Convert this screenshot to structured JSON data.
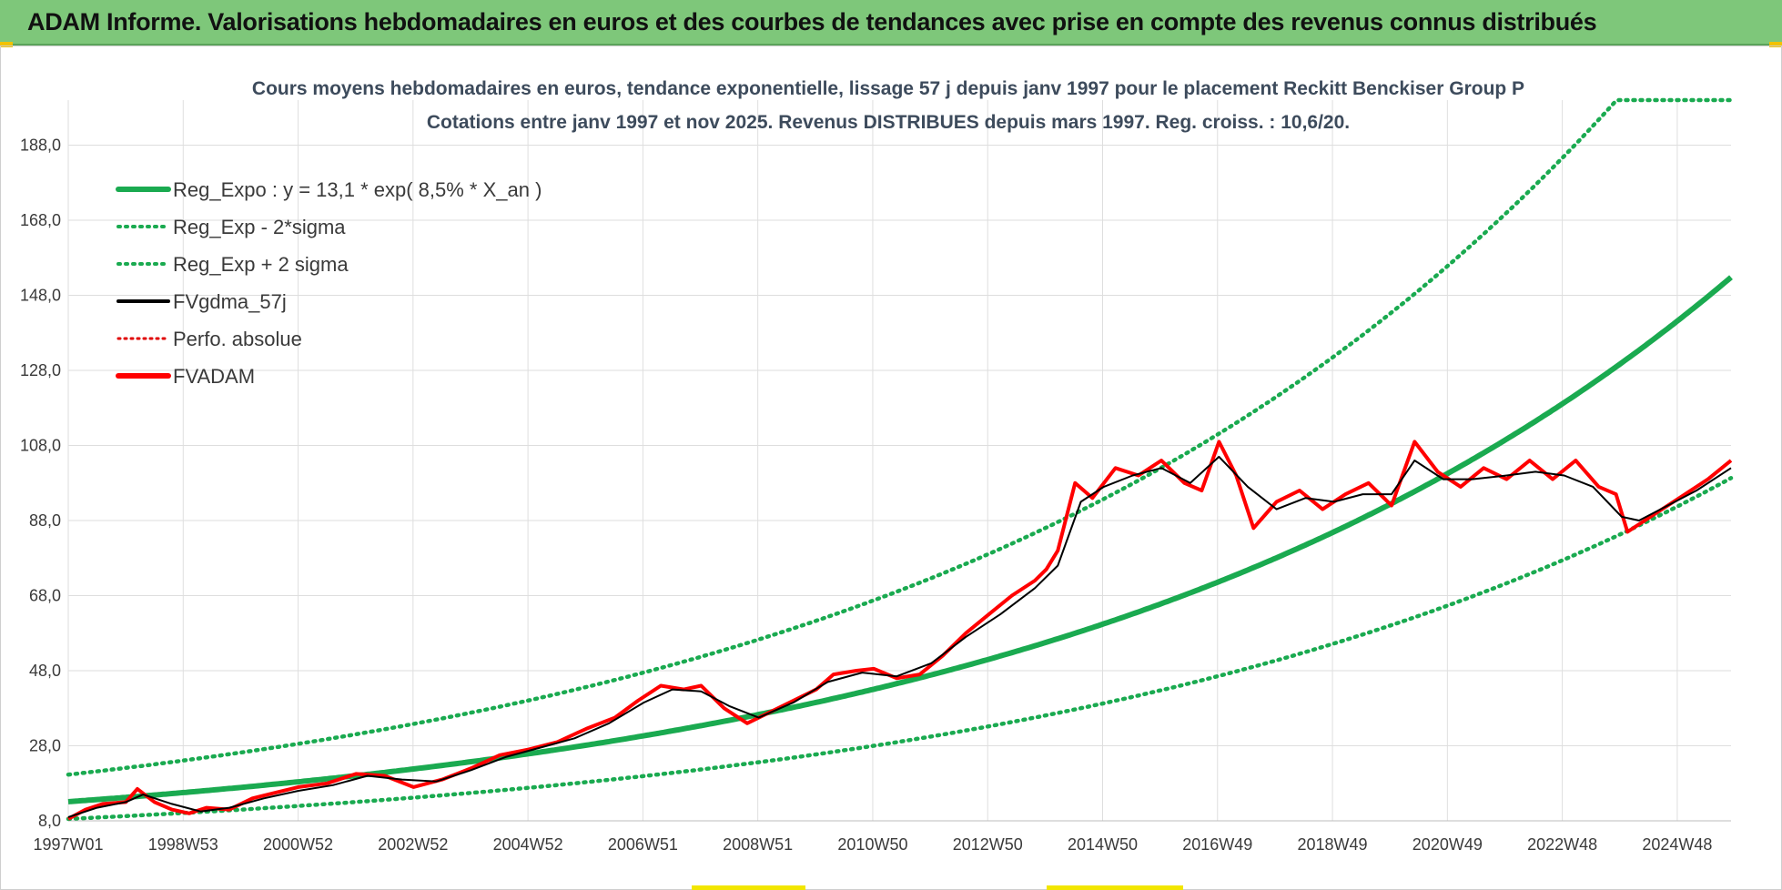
{
  "header": {
    "title": "ADAM Informe. Valorisations hebdomadaires en euros et des courbes de tendances avec prise en compte des revenus connus distribués"
  },
  "colors": {
    "banner": "#7ec77a",
    "trend": "#1aaa50",
    "sma": "#000000",
    "perf": "#e00000",
    "adam": "#ff0000",
    "grid": "#dedede"
  },
  "chart_data": {
    "type": "line",
    "title_line1": "Cours moyens hebdomadaires en euros, tendance exponentielle, lissage 57 j depuis janv 1997 pour le placement Reckitt Benckiser Group P",
    "title_line2": "Cotations entre janv 1997 et nov 2025. Revenus DISTRIBUES depuis mars 1997. Reg. croiss. : 10,6/20.",
    "xlabel": "",
    "ylabel": "",
    "ylim": [
      8,
      200
    ],
    "xlim": [
      1997.0,
      2025.9
    ],
    "y_ticks": [
      "8,0",
      "28,0",
      "48,0",
      "68,0",
      "88,0",
      "108,0",
      "128,0",
      "148,0",
      "168,0",
      "188,0"
    ],
    "x_ticks": [
      "1997W01",
      "1998W53",
      "2000W52",
      "2002W52",
      "2004W52",
      "2006W51",
      "2008W51",
      "2010W50",
      "2012W50",
      "2014W50",
      "2016W49",
      "2018W49",
      "2020W49",
      "2022W48",
      "2024W48"
    ],
    "legend": [
      "Reg_Expo : y = 13,1 * exp( 8,5% *  X_an )",
      "Reg_Exp - 2*sigma",
      "Reg_Exp + 2 sigma",
      "FVgdma_57j",
      "Perfo. absolue",
      "FVADAM"
    ],
    "legend_position": "top-left",
    "grid": true,
    "trend": {
      "a": 13.1,
      "rate": 0.085,
      "lower_factor": 0.65,
      "upper_factor": 1.55,
      "start_year": 1997.0
    },
    "series": [
      {
        "name": "FVADAM",
        "x": [
          1997.0,
          1997.3,
          1997.6,
          1998.0,
          1998.2,
          1998.5,
          1998.8,
          1999.1,
          1999.4,
          1999.8,
          2000.2,
          2000.6,
          2001.0,
          2001.5,
          2002.0,
          2002.5,
          2003.0,
          2003.5,
          2004.0,
          2004.5,
          2005.0,
          2005.5,
          2006.0,
          2006.5,
          2006.9,
          2007.3,
          2007.7,
          2008.0,
          2008.4,
          2008.8,
          2009.2,
          2009.6,
          2010.0,
          2010.3,
          2010.7,
          2011.0,
          2011.4,
          2011.8,
          2012.2,
          2012.6,
          2013.0,
          2013.4,
          2013.8,
          2014.0,
          2014.2,
          2014.5,
          2014.8,
          2015.2,
          2015.6,
          2016.0,
          2016.4,
          2016.7,
          2017.0,
          2017.3,
          2017.6,
          2018.0,
          2018.4,
          2018.8,
          2019.2,
          2019.6,
          2020.0,
          2020.4,
          2020.8,
          2021.2,
          2021.6,
          2022.0,
          2022.4,
          2022.8,
          2023.2,
          2023.6,
          2023.9,
          2024.1,
          2024.4,
          2024.8,
          2025.2,
          2025.5,
          2025.9
        ],
        "values": [
          8.5,
          11.0,
          12.5,
          13.0,
          16.5,
          13.0,
          11.0,
          10.0,
          11.5,
          11.0,
          14.0,
          15.5,
          17.0,
          18.0,
          20.5,
          20.0,
          17.0,
          19.0,
          22.0,
          25.5,
          27.0,
          29.0,
          32.5,
          35.5,
          40.0,
          44.0,
          43.0,
          44.0,
          38.0,
          34.0,
          37.0,
          40.0,
          43.0,
          47.0,
          48.0,
          48.5,
          46.0,
          47.0,
          52.0,
          58.0,
          63.0,
          68.0,
          72.0,
          75.0,
          80.0,
          98.0,
          94.0,
          102.0,
          100.0,
          104.0,
          98.0,
          96.0,
          109.0,
          100.0,
          86.0,
          93.0,
          96.0,
          91.0,
          95.0,
          98.0,
          92.0,
          109.0,
          101.0,
          97.0,
          102.0,
          99.0,
          104.0,
          99.0,
          104.0,
          97.0,
          95.0,
          85.0,
          88.0,
          92.0,
          96.0,
          99.0,
          104.0
        ]
      },
      {
        "name": "FVgdma_57j",
        "x": [
          1997.0,
          1997.5,
          1998.0,
          1998.3,
          1998.8,
          1999.3,
          1999.8,
          2000.4,
          2001.0,
          2001.6,
          2002.2,
          2002.8,
          2003.4,
          2004.0,
          2004.6,
          2005.2,
          2005.8,
          2006.4,
          2007.0,
          2007.5,
          2008.0,
          2008.5,
          2009.0,
          2009.6,
          2010.2,
          2010.8,
          2011.4,
          2012.0,
          2012.6,
          2013.2,
          2013.8,
          2014.2,
          2014.6,
          2015.0,
          2015.5,
          2016.0,
          2016.5,
          2017.0,
          2017.5,
          2018.0,
          2018.5,
          2019.0,
          2019.5,
          2020.0,
          2020.4,
          2020.9,
          2021.4,
          2022.0,
          2022.5,
          2023.0,
          2023.5,
          2024.0,
          2024.3,
          2024.8,
          2025.3,
          2025.9
        ],
        "values": [
          9.0,
          11.5,
          13.0,
          15.0,
          12.5,
          10.5,
          11.5,
          14.0,
          16.0,
          17.5,
          20.0,
          19.0,
          18.5,
          21.5,
          25.0,
          27.5,
          30.0,
          34.0,
          39.5,
          43.0,
          42.5,
          38.5,
          35.5,
          39.5,
          45.0,
          47.5,
          46.5,
          50.0,
          57.0,
          63.0,
          70.0,
          76.0,
          93.0,
          97.0,
          100.0,
          102.0,
          98.0,
          105.0,
          97.0,
          91.0,
          94.0,
          93.0,
          95.0,
          95.0,
          104.0,
          99.0,
          99.0,
          100.0,
          101.0,
          100.0,
          97.0,
          89.0,
          88.0,
          92.0,
          96.0,
          102.0
        ]
      }
    ]
  }
}
